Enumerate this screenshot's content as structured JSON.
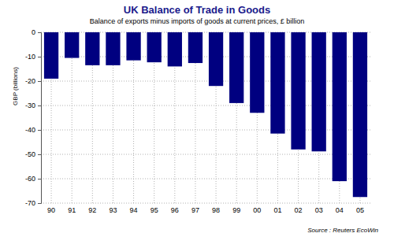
{
  "chart_data": {
    "type": "bar",
    "title": "UK Balance of Trade in Goods",
    "subtitle": "Balance of exports minus imports of goods at current prices, £ billion",
    "y_label": "GBP (billions)",
    "source": "Source : Reuters EcoWin",
    "categories": [
      "90",
      "91",
      "92",
      "93",
      "94",
      "95",
      "96",
      "97",
      "98",
      "99",
      "00",
      "01",
      "02",
      "03",
      "04",
      "05"
    ],
    "values": [
      -19,
      -10.5,
      -13.5,
      -13.5,
      -11.5,
      -12.3,
      -14,
      -12.6,
      -22,
      -29,
      -33,
      -41.5,
      -48,
      -48.8,
      -61,
      -67.5
    ],
    "color": "#000080",
    "ylim": [
      -70,
      0
    ],
    "yticks": [
      0,
      -10,
      -20,
      -30,
      -40,
      -50,
      -60,
      -70
    ],
    "grid": true
  }
}
